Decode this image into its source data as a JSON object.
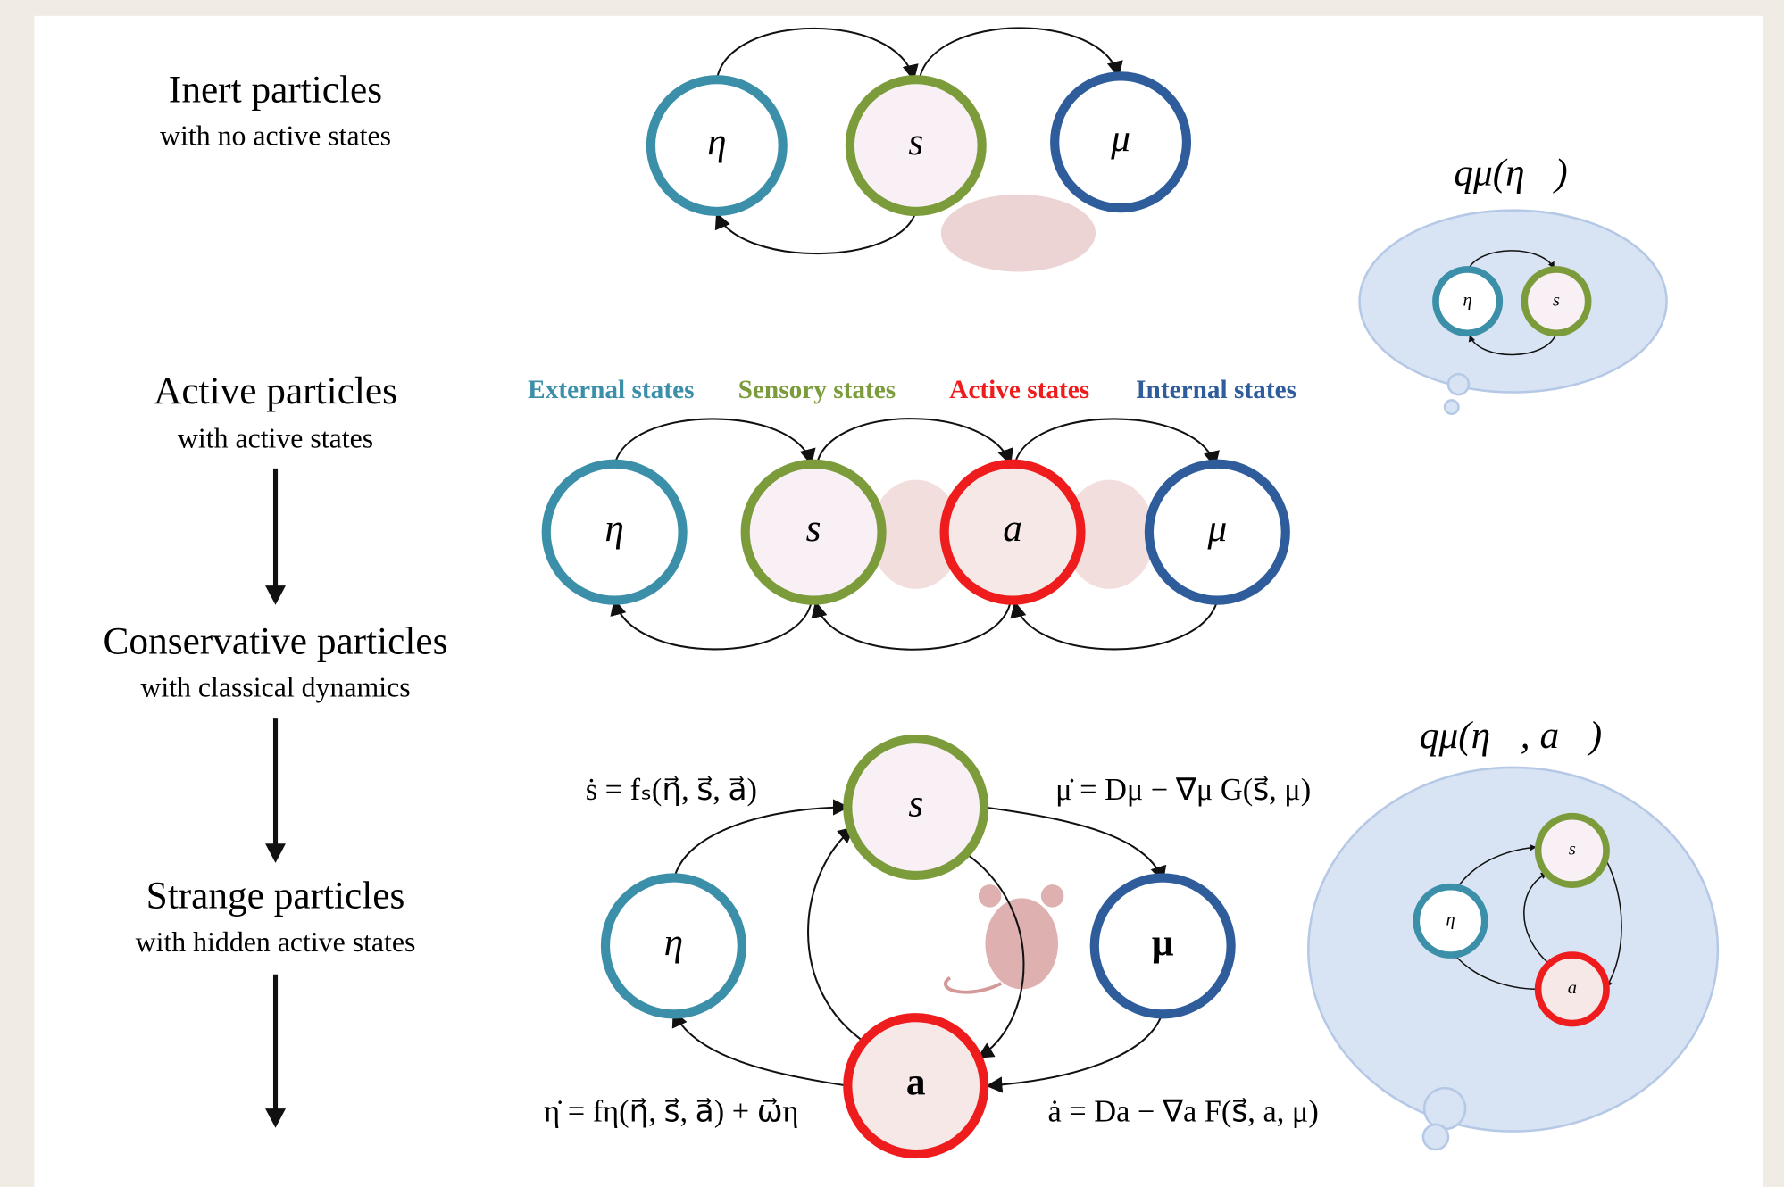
{
  "rows": [
    {
      "title": "Inert particles",
      "subtitle": "with no active states"
    },
    {
      "title": "Active particles",
      "subtitle": "with active states"
    },
    {
      "title": "Conservative particles",
      "subtitle": "with classical dynamics"
    },
    {
      "title": "Strange particles",
      "subtitle": "with hidden active states"
    }
  ],
  "legend": [
    "External states",
    "Sensory states",
    "Active states",
    "Internal states"
  ],
  "inert": {
    "nodes": [
      "η",
      "s",
      "μ"
    ]
  },
  "active": {
    "nodes": [
      "η",
      "s",
      "a",
      "μ"
    ]
  },
  "strange": {
    "nodes": [
      "s",
      "η",
      "μ",
      "a"
    ],
    "equations": [
      "ṡ = fₛ(η⃗, s⃗, a⃗)",
      "μ̇ = Dμ − ∇μ G(s⃗, μ)",
      "η̇ = fη(η⃗, s⃗, a⃗) + ω⃗η",
      "ȧ = Da − ∇a F(s⃗, a, μ)"
    ]
  },
  "bubble_inert": {
    "label": "qμ(η⃗)",
    "nodes": [
      "η",
      "s"
    ]
  },
  "bubble_strange": {
    "label": "qμ(η⃗, a⃗)",
    "nodes": [
      "s",
      "η",
      "a"
    ]
  }
}
